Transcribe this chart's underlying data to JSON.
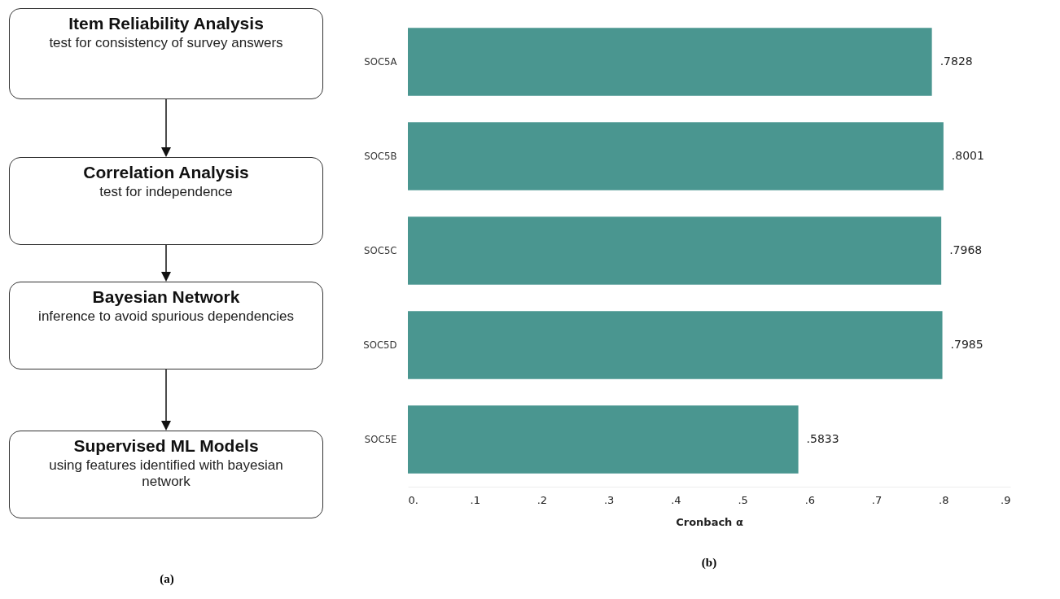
{
  "chart_data": [
    {
      "type": "other",
      "title": "(a)",
      "annotations": [
        "Item Reliability Analysis",
        "test for consistency of survey answers",
        "Correlation Analysis",
        "test for independence",
        "Bayesian Network",
        "inference to avoid spurious dependencies",
        "Supervised ML Models",
        "using features identified with bayesian network"
      ]
    },
    {
      "type": "bar",
      "orientation": "horizontal",
      "title": "(b)",
      "xlabel": "Cronbach α",
      "categories": [
        "SOC5A",
        "SOC5B",
        "SOC5C",
        "SOC5D",
        "SOC5E"
      ],
      "values": [
        0.7828,
        0.8001,
        0.7968,
        0.7985,
        0.5833
      ],
      "value_labels": [
        ".7828",
        ".8001",
        ".7968",
        ".7985",
        ".5833"
      ],
      "color": "#4a9690",
      "xlim": [
        0,
        0.9
      ],
      "xticks": [
        {
          "value": 0,
          "label": "0."
        },
        {
          "value": 0.1,
          "label": ".1"
        },
        {
          "value": 0.2,
          "label": ".2"
        },
        {
          "value": 0.3,
          "label": ".3"
        },
        {
          "value": 0.4,
          "label": ".4"
        },
        {
          "value": 0.5,
          "label": ".5"
        },
        {
          "value": 0.6,
          "label": ".6"
        },
        {
          "value": 0.7,
          "label": ".7"
        },
        {
          "value": 0.8,
          "label": ".8"
        },
        {
          "value": 0.9,
          "label": ".9"
        }
      ]
    }
  ]
}
